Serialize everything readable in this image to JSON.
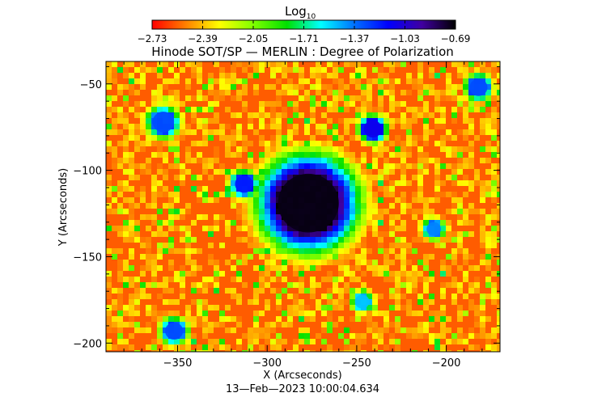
{
  "chart_data": {
    "type": "heatmap",
    "title": "Hinode SOT/SP — MERLIN : Degree of Polarization",
    "xlabel": "X (Arcseconds)",
    "ylabel": "Y (Arcseconds)",
    "timestamp": "13—Feb—2023 10:00:04.634",
    "xlim": [
      -390,
      -170
    ],
    "ylim": [
      -205,
      -37
    ],
    "xticks": [
      {
        "value": -350,
        "label": "−350"
      },
      {
        "value": -300,
        "label": "−300"
      },
      {
        "value": -250,
        "label": "−250"
      },
      {
        "value": -200,
        "label": "−200"
      }
    ],
    "yticks": [
      {
        "value": -50,
        "label": "−50"
      },
      {
        "value": -100,
        "label": "−100"
      },
      {
        "value": -150,
        "label": "−150"
      },
      {
        "value": -200,
        "label": "−200"
      }
    ],
    "colorbar": {
      "title": "Log",
      "title_subscript": "10",
      "range": [
        -2.73,
        -0.69
      ],
      "scale": "log10",
      "colormap": "rainbow (red low → black high)",
      "tick_labels": [
        "−2.73",
        "−2.39",
        "−2.05",
        "−1.71",
        "−1.37",
        "−1.03",
        "−0.69"
      ]
    },
    "features": [
      {
        "name": "sunspot",
        "x": -277,
        "y": -119,
        "radius": 17,
        "value": -0.72
      },
      {
        "name": "magnetic-patch",
        "x": -241,
        "y": -76,
        "radius": 5,
        "value": -1.1
      },
      {
        "name": "magnetic-patch",
        "x": -313,
        "y": -108,
        "radius": 5,
        "value": -1.2
      },
      {
        "name": "magnetic-patch",
        "x": -358,
        "y": -72,
        "radius": 6,
        "value": -1.3
      },
      {
        "name": "magnetic-patch",
        "x": -352,
        "y": -193,
        "radius": 5,
        "value": -1.3
      },
      {
        "name": "magnetic-patch",
        "x": -182,
        "y": -52,
        "radius": 5,
        "value": -1.3
      },
      {
        "name": "magnetic-patch",
        "x": -207,
        "y": -134,
        "radius": 4,
        "value": -1.4
      },
      {
        "name": "magnetic-patch",
        "x": -247,
        "y": -176,
        "radius": 4,
        "value": -1.5
      }
    ],
    "colors": {
      "stops": [
        "#ff0000",
        "#ff8000",
        "#ffff00",
        "#80ff00",
        "#00e000",
        "#00ffff",
        "#0070ff",
        "#0000ff",
        "#4000a0",
        "#000000"
      ]
    }
  }
}
